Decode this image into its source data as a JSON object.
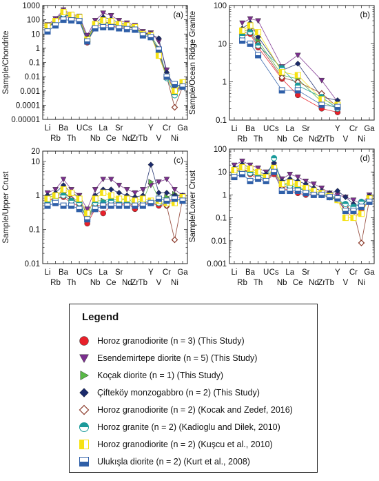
{
  "legend": {
    "title": "Legend",
    "items": [
      {
        "label": "Horoz granodiorite (n = 3) (This Study)",
        "marker": "circle",
        "color": "#e8202a"
      },
      {
        "label": "Esendemirtepe diorite (n = 5) (This Study)",
        "marker": "triangle-down",
        "color": "#7b2f8e"
      },
      {
        "label": "Koçak diorite (n = 1) (This Study)",
        "marker": "triangle-right",
        "color": "#58b947"
      },
      {
        "label": "Çifteköy monzogabbro (n = 2) (This Study)",
        "marker": "diamond",
        "color": "#1b2a6b"
      },
      {
        "label": "Horoz granodiorite (n = 2) (Kocak and Zedef, 2016)",
        "marker": "diamond-open",
        "color": "#8b3a2a"
      },
      {
        "label": "Horoz granite (n = 2) (Kadioglu and Dilek, 2010)",
        "marker": "circle-half",
        "color": "#1a9a9a"
      },
      {
        "label": "Horoz granodiorite (n = 2) (Kuşcu et al., 2010)",
        "marker": "square-half-v",
        "color": "#f6e214"
      },
      {
        "label": "Ulukışla diorite (n = 2) (Kurt et al., 2008)",
        "marker": "square-half-h",
        "color": "#2f5fa8"
      }
    ]
  },
  "chart_data": [
    {
      "type": "line",
      "panel": "(a)",
      "ylabel": "Sample/Chondrite",
      "yscale": "log",
      "ylim": [
        1e-05,
        1000
      ],
      "ytick_labels": [
        "0.00001",
        "0.0001",
        "0.001",
        "0.01",
        "0.1",
        "1",
        "10",
        "100",
        "1000"
      ],
      "xtick_top": [
        "Li",
        "Ba",
        "U",
        "Cs",
        "La",
        "Sr",
        "Y",
        "Cr",
        "Ga"
      ],
      "xtick_bottom": [
        "Rb",
        "Th",
        "Nb",
        "Ce",
        "Nd",
        "Zr",
        "Tb",
        "V",
        "Ni"
      ],
      "x": [
        "Li",
        "Rb",
        "Ba",
        "Th",
        "U",
        "Cs",
        "Nb",
        "La",
        "Ce",
        "Sr",
        "Nd",
        "Zr",
        "Tb",
        "Y",
        "V",
        "Cr",
        "Ni",
        "Ga"
      ],
      "series": [
        {
          "marker": "circle",
          "color": "#e8202a",
          "values": [
            30,
            60,
            200,
            120,
            110,
            2.5,
            35,
            40,
            35,
            30,
            28,
            25,
            12,
            9,
            0.3,
            0.01,
            0.001,
            0.002
          ]
        },
        {
          "marker": "triangle-down",
          "color": "#7b2f8e",
          "values": [
            45,
            120,
            500,
            250,
            180,
            8,
            90,
            300,
            200,
            90,
            60,
            40,
            15,
            12,
            3,
            0.03,
            0.0005,
            0.004
          ]
        },
        {
          "marker": "triangle-right",
          "color": "#58b947",
          "values": [
            35,
            70,
            250,
            150,
            130,
            4,
            45,
            60,
            50,
            40,
            35,
            28,
            11,
            8,
            1,
            0.01,
            0.001,
            0.003
          ]
        },
        {
          "marker": "diamond",
          "color": "#1b2a6b",
          "values": [
            40,
            90,
            400,
            200,
            160,
            5,
            60,
            150,
            110,
            60,
            45,
            30,
            12,
            10,
            5,
            0.02,
            0.002,
            0.003
          ]
        },
        {
          "marker": "diamond-open",
          "color": "#8b3a2a",
          "values": [
            30,
            80,
            300,
            160,
            120,
            3,
            40,
            70,
            60,
            40,
            35,
            25,
            10,
            8,
            0.5,
            0.01,
            7e-05,
            0.002
          ]
        },
        {
          "marker": "circle-half",
          "color": "#1a9a9a",
          "values": [
            28,
            70,
            250,
            150,
            120,
            3,
            40,
            60,
            50,
            35,
            30,
            25,
            10,
            7,
            0.4,
            0.008,
            0.0005,
            0.002
          ]
        },
        {
          "marker": "square-half-v",
          "color": "#f6e214",
          "values": [
            35,
            80,
            350,
            220,
            150,
            4,
            50,
            90,
            80,
            50,
            40,
            30,
            10,
            8,
            0.3,
            0.01,
            0.001,
            0.004
          ]
        },
        {
          "marker": "square-half-h",
          "color": "#2f5fa8",
          "values": [
            15,
            40,
            100,
            90,
            80,
            3,
            25,
            30,
            30,
            25,
            22,
            20,
            8,
            6,
            0.8,
            0.01,
            0.003,
            0.002
          ]
        }
      ]
    },
    {
      "type": "line",
      "panel": "(b)",
      "ylabel": "Sample/Ocean Ridge Granite",
      "yscale": "log",
      "ylim": [
        0.1,
        100
      ],
      "ytick_labels": [
        "0.1",
        "1",
        "10",
        "100"
      ],
      "xtick_top": [
        "Li",
        "Ba",
        "U",
        "Cs",
        "La",
        "Sr",
        "Y",
        "Cr",
        "Ga"
      ],
      "xtick_bottom": [
        "Rb",
        "Th",
        "Nb",
        "Ce",
        "Nd",
        "Zr",
        "Tb",
        "V",
        "Ni"
      ],
      "x": [
        "Rb",
        "Ba",
        "Th",
        "Nb",
        "Ce",
        "Zr",
        "Y"
      ],
      "series": [
        {
          "marker": "circle",
          "color": "#e8202a",
          "values": [
            15,
            18,
            8,
            1.2,
            0.45,
            0.2,
            0.16
          ]
        },
        {
          "marker": "triangle-down",
          "color": "#7b2f8e",
          "values": [
            35,
            45,
            40,
            2.5,
            5,
            1.1,
            0.3
          ]
        },
        {
          "marker": "triangle-right",
          "color": "#58b947",
          "values": [
            20,
            25,
            12,
            1.5,
            1.2,
            0.3,
            0.2
          ]
        },
        {
          "marker": "diamond",
          "color": "#1b2a6b",
          "values": [
            25,
            35,
            15,
            2,
            3,
            0.4,
            0.33
          ]
        },
        {
          "marker": "diamond-open",
          "color": "#8b3a2a",
          "values": [
            18,
            22,
            10,
            1.3,
            1,
            0.5,
            0.22
          ]
        },
        {
          "marker": "circle-half",
          "color": "#1a9a9a",
          "values": [
            16,
            20,
            9,
            2.3,
            0.8,
            0.4,
            0.2
          ]
        },
        {
          "marker": "square-half-v",
          "color": "#f6e214",
          "values": [
            22,
            30,
            20,
            1.8,
            1.5,
            0.35,
            0.25
          ]
        },
        {
          "marker": "square-half-h",
          "color": "#2f5fa8",
          "values": [
            12,
            10,
            5,
            0.6,
            0.6,
            0.25,
            0.22
          ]
        }
      ]
    },
    {
      "type": "line",
      "panel": "(c)",
      "ylabel": "Sample/Upper Crust",
      "yscale": "log",
      "ylim": [
        0.01,
        20
      ],
      "ytick_labels": [
        "0.01",
        "0.1",
        "1",
        "10",
        "20"
      ],
      "xtick_top": [
        "Li",
        "Ba",
        "U",
        "Cs",
        "La",
        "Sr",
        "Y",
        "Cr",
        "Ga"
      ],
      "xtick_bottom": [
        "Rb",
        "Th",
        "Nb",
        "Ce",
        "Nd",
        "Zr",
        "Tb",
        "V",
        "Ni"
      ],
      "x": [
        "Li",
        "Rb",
        "Ba",
        "Th",
        "U",
        "Cs",
        "Nb",
        "La",
        "Ce",
        "Sr",
        "Nd",
        "Zr",
        "Tb",
        "Y",
        "V",
        "Cr",
        "Ni",
        "Ga"
      ],
      "series": [
        {
          "marker": "circle",
          "color": "#e8202a",
          "values": [
            0.7,
            0.8,
            0.9,
            0.6,
            0.5,
            0.15,
            0.4,
            0.3,
            0.5,
            0.5,
            0.6,
            0.4,
            0.6,
            0.6,
            0.5,
            0.5,
            1,
            0.8
          ]
        },
        {
          "marker": "triangle-down",
          "color": "#7b2f8e",
          "values": [
            1.2,
            1.5,
            3,
            1.5,
            1,
            0.4,
            1.5,
            3,
            3,
            2,
            1.5,
            1.2,
            1.5,
            2,
            2.5,
            3,
            1.5,
            1
          ]
        },
        {
          "marker": "triangle-right",
          "color": "#58b947",
          "values": [
            0.9,
            1,
            1.3,
            0.8,
            0.7,
            0.2,
            0.7,
            0.7,
            0.8,
            0.7,
            0.8,
            0.6,
            0.7,
            2.5,
            0.8,
            0.9,
            1.1,
            0.9
          ]
        },
        {
          "marker": "diamond",
          "color": "#1b2a6b",
          "values": [
            1,
            1.2,
            2,
            1.2,
            0.9,
            0.25,
            1,
            1.5,
            1.5,
            1.2,
            1,
            0.9,
            1,
            8,
            1.2,
            1.2,
            1,
            1
          ]
        },
        {
          "marker": "diamond-open",
          "color": "#8b3a2a",
          "values": [
            0.7,
            0.9,
            1.2,
            0.8,
            0.6,
            0.2,
            0.5,
            0.5,
            0.6,
            0.6,
            0.6,
            0.5,
            0.6,
            0.6,
            0.6,
            0.5,
            0.05,
            0.8
          ]
        },
        {
          "marker": "circle-half",
          "color": "#1a9a9a",
          "values": [
            0.6,
            0.8,
            1,
            0.7,
            0.6,
            0.2,
            0.6,
            0.6,
            0.7,
            0.6,
            0.6,
            0.6,
            0.7,
            0.6,
            0.6,
            0.6,
            0.7,
            0.8
          ]
        },
        {
          "marker": "square-half-v",
          "color": "#f6e214",
          "values": [
            0.8,
            1,
            1.5,
            1.2,
            0.8,
            0.3,
            0.8,
            1.2,
            1,
            0.8,
            0.8,
            0.7,
            0.8,
            0.7,
            0.7,
            0.6,
            0.6,
            0.9
          ]
        },
        {
          "marker": "square-half-h",
          "color": "#2f5fa8",
          "values": [
            0.5,
            0.6,
            0.5,
            0.5,
            0.4,
            0.2,
            0.4,
            0.5,
            0.5,
            0.5,
            0.5,
            0.5,
            0.5,
            0.6,
            0.8,
            0.7,
            0.8,
            0.7
          ]
        }
      ]
    },
    {
      "type": "line",
      "panel": "(d)",
      "ylabel": "Sample/Lower Crust",
      "yscale": "log",
      "ylim": [
        0.001,
        100
      ],
      "ytick_labels": [
        "0.001",
        "0.01",
        "0.1",
        "1",
        "10",
        "100"
      ],
      "xtick_top": [
        "Li",
        "Ba",
        "U",
        "Cs",
        "La",
        "Sr",
        "Y",
        "Cr",
        "Ga"
      ],
      "xtick_bottom": [
        "Rb",
        "Th",
        "Nb",
        "Ce",
        "Nd",
        "Zr",
        "Tb",
        "V",
        "Ni"
      ],
      "x": [
        "Li",
        "Rb",
        "Ba",
        "Th",
        "U",
        "Cs",
        "Nb",
        "La",
        "Ce",
        "Sr",
        "Nd",
        "Zr",
        "Tb",
        "Y",
        "V",
        "Cr",
        "Ni",
        "Ga"
      ],
      "series": [
        {
          "marker": "circle",
          "color": "#e8202a",
          "values": [
            10,
            15,
            8,
            5,
            4,
            8,
            2,
            1.5,
            1.2,
            1,
            1,
            1,
            0.8,
            0.6,
            0.2,
            0.1,
            0.2,
            0.6
          ]
        },
        {
          "marker": "triangle-down",
          "color": "#7b2f8e",
          "values": [
            20,
            30,
            20,
            15,
            10,
            20,
            5,
            8,
            6,
            4,
            3,
            2,
            1.2,
            1,
            0.8,
            0.6,
            0.4,
            1
          ]
        },
        {
          "marker": "triangle-right",
          "color": "#58b947",
          "values": [
            12,
            18,
            12,
            8,
            6,
            12,
            3,
            3,
            2.5,
            1.5,
            1.5,
            1.2,
            1,
            0.7,
            0.3,
            0.2,
            0.3,
            0.8
          ]
        },
        {
          "marker": "diamond",
          "color": "#1b2a6b",
          "values": [
            15,
            22,
            15,
            10,
            8,
            25,
            4,
            5,
            4,
            3,
            2,
            1.5,
            1.2,
            1.5,
            0.8,
            0.4,
            0.3,
            0.9
          ]
        },
        {
          "marker": "diamond-open",
          "color": "#8b3a2a",
          "values": [
            10,
            14,
            10,
            6,
            5,
            10,
            2.5,
            2,
            2,
            1.5,
            1.2,
            1,
            0.8,
            0.6,
            0.3,
            0.2,
            0.008,
            0.6
          ]
        },
        {
          "marker": "circle-half",
          "color": "#1a9a9a",
          "values": [
            9,
            12,
            9,
            6,
            5,
            40,
            3,
            2.5,
            2,
            1.5,
            1.2,
            1,
            0.8,
            0.6,
            0.4,
            0.3,
            0.5,
            0.6
          ]
        },
        {
          "marker": "square-half-v",
          "color": "#f6e214",
          "values": [
            12,
            16,
            14,
            10,
            6,
            15,
            3,
            3.5,
            3,
            2,
            1.5,
            1.2,
            0.9,
            0.6,
            0.1,
            0.1,
            0.15,
            0.7
          ]
        },
        {
          "marker": "square-half-h",
          "color": "#2f5fa8",
          "values": [
            6,
            8,
            4,
            5,
            4,
            10,
            1.5,
            1.5,
            1.5,
            1.2,
            1,
            1,
            0.8,
            0.7,
            0.2,
            0.2,
            0.3,
            0.5
          ]
        }
      ]
    }
  ]
}
